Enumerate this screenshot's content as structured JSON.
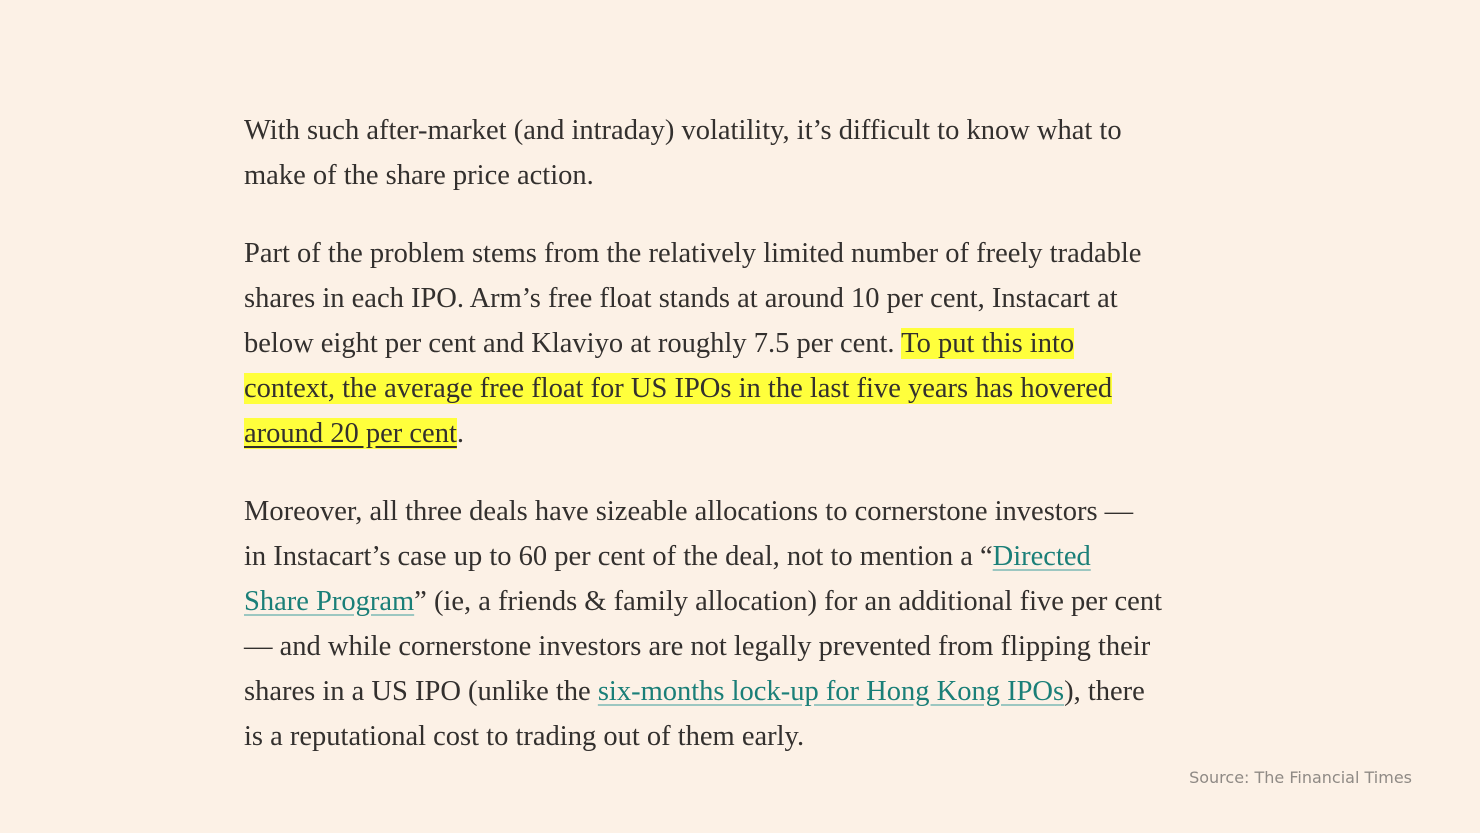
{
  "paragraphs": [
    [
      [
        "With such after-market (and intraday) volatility, it’s difficult to know what to"
      ],
      [
        "make of the share price action."
      ]
    ],
    [
      [
        "Part of the problem stems from the relatively limited number of freely tradable"
      ],
      [
        "shares in each IPO. Arm’s free float stands at around 10 per cent, Instacart at"
      ],
      [
        "below eight per cent and Klaviyo at roughly 7.5 per cent. ",
        "To put this into"
      ],
      [
        "context, the average free float for US IPOs in the last five years has hovered"
      ],
      [
        "around 20 per cent",
        "."
      ]
    ],
    [
      [
        "Moreover, all three deals have sizeable allocations to cornerstone investors —"
      ],
      [
        "in Instacart’s case up to 60 per cent of the deal, not to mention a “",
        "Directed"
      ],
      [
        "Share Program",
        "” (ie, a friends & family allocation) for an additional five per cent"
      ],
      [
        "— and while cornerstone investors are not legally prevented from flipping their"
      ],
      [
        "shares in a US IPO (unlike the ",
        "six-months lock-up for Hong Kong IPOs",
        "), there"
      ],
      [
        "is a reputational cost to trading out of them early."
      ]
    ]
  ],
  "source": "Source: The Financial Times"
}
